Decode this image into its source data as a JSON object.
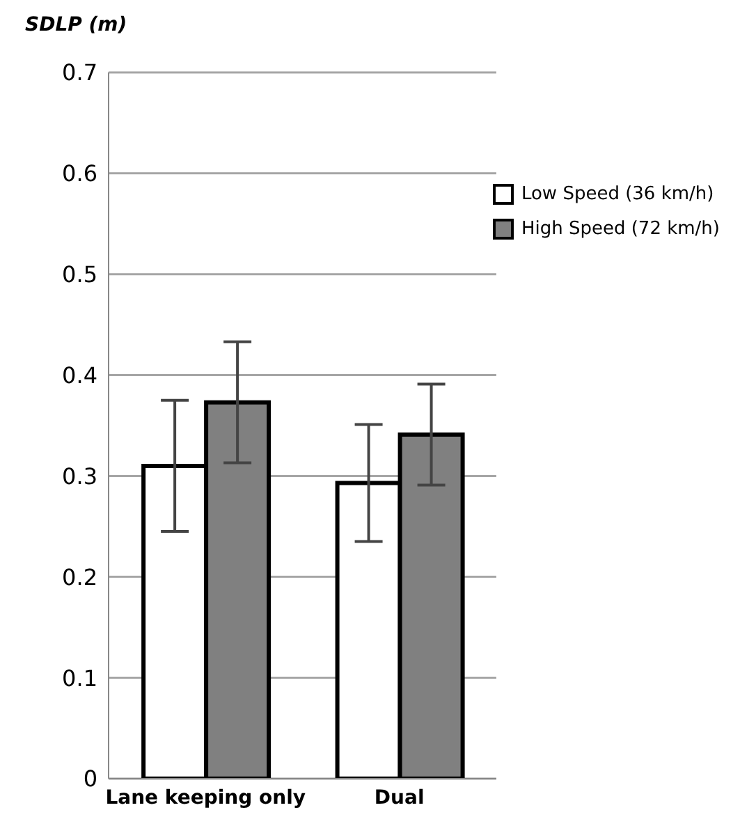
{
  "chart_data": {
    "type": "bar",
    "ylabel": "SDLP (m)",
    "categories": [
      "Lane keeping only",
      "Dual"
    ],
    "series": [
      {
        "name": "Low Speed (36 km/h)",
        "color": "#ffffff",
        "values": [
          0.31,
          0.293
        ],
        "errors": [
          0.065,
          0.058
        ]
      },
      {
        "name": "High Speed (72 km/h)",
        "color": "#808080",
        "values": [
          0.373,
          0.341
        ],
        "errors": [
          0.06,
          0.05
        ]
      }
    ],
    "ylim": [
      0,
      0.7
    ],
    "yticks": [
      0,
      0.1,
      0.2,
      0.3,
      0.4,
      0.5,
      0.6,
      0.7
    ],
    "grid": "y",
    "legend": "top right"
  }
}
